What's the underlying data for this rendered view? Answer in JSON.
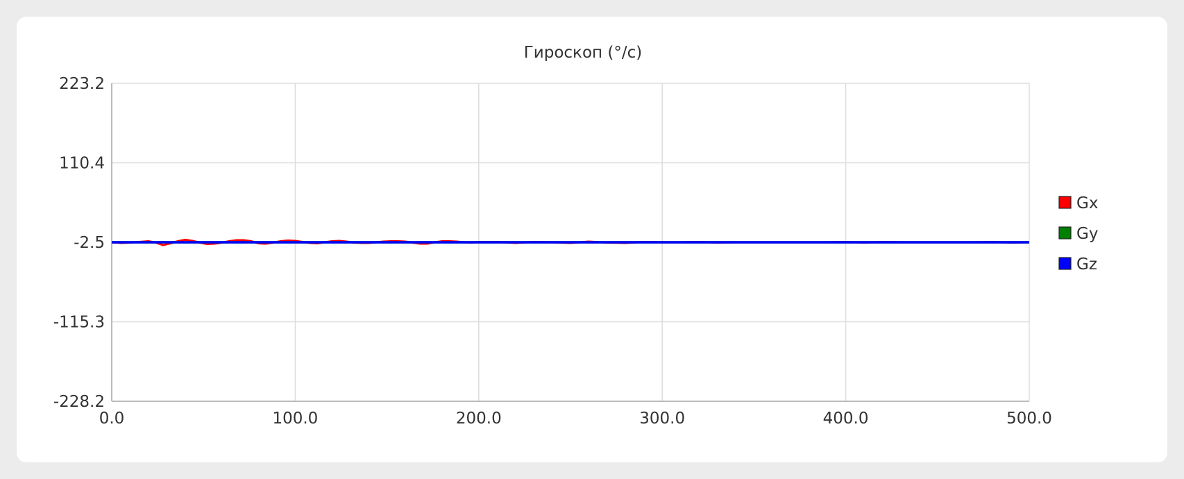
{
  "chart_data": {
    "type": "line",
    "title": "Гироскоп (°/с)",
    "xlabel": "",
    "ylabel": "",
    "xlim": [
      0,
      500
    ],
    "ylim": [
      -228.2,
      223.2
    ],
    "x_ticks": [
      "0.0",
      "100.0",
      "200.0",
      "300.0",
      "400.0",
      "500.0"
    ],
    "y_ticks": [
      "223.2",
      "110.4",
      "-2.5",
      "-115.3",
      "-228.2"
    ],
    "x_tick_values": [
      0,
      100,
      200,
      300,
      400,
      500
    ],
    "y_tick_values": [
      223.2,
      110.4,
      -2.5,
      -115.3,
      -228.2
    ],
    "grid": true,
    "legend_position": "right",
    "series": [
      {
        "name": "Gx",
        "color": "#ff0000",
        "x": [
          0,
          5,
          10,
          15,
          20,
          24,
          28,
          32,
          36,
          40,
          44,
          48,
          52,
          56,
          60,
          64,
          68,
          72,
          76,
          80,
          84,
          88,
          92,
          96,
          100,
          104,
          108,
          112,
          116,
          120,
          124,
          128,
          132,
          136,
          140,
          144,
          148,
          152,
          156,
          160,
          164,
          168,
          172,
          176,
          180,
          184,
          188,
          192,
          196,
          200,
          210,
          220,
          230,
          240,
          250,
          260,
          270,
          280,
          290,
          300,
          310,
          320,
          330,
          340,
          350,
          360,
          370,
          380,
          390,
          400,
          410,
          420,
          430,
          440,
          450,
          460,
          470,
          480,
          490,
          500
        ],
        "values": [
          -2.5,
          -3.5,
          -3,
          -2,
          -1,
          -3,
          -6.5,
          -4,
          -1,
          1,
          -0.5,
          -3,
          -5,
          -4.5,
          -3,
          -1,
          0.5,
          0.5,
          -1,
          -4,
          -4.5,
          -3,
          -1,
          0,
          -0.5,
          -2,
          -3.5,
          -4,
          -2.5,
          -1,
          -0.5,
          -1.5,
          -3,
          -3.5,
          -3.5,
          -2.5,
          -1.5,
          -1,
          -1,
          -1.5,
          -3,
          -4.5,
          -4.5,
          -2.5,
          -1,
          -1,
          -1.5,
          -2.5,
          -3,
          -2,
          -2,
          -3.5,
          -2,
          -2.5,
          -3.5,
          -1.5,
          -3,
          -3.5,
          -2,
          -2.5,
          -2.5,
          -2,
          -3,
          -2.5,
          -2.5,
          -2.5,
          -2.5,
          -2.5,
          -2.5,
          -2,
          -3,
          -2,
          -2.5,
          -2.5,
          -2.5,
          -2.5,
          -2.5,
          -2,
          -3,
          -2.5
        ]
      },
      {
        "name": "Gy",
        "color": "#008000",
        "x": [
          0,
          50,
          100,
          150,
          200,
          250,
          300,
          350,
          400,
          450,
          500
        ],
        "values": [
          -2.5,
          -2.5,
          -2.5,
          -2.5,
          -2.5,
          -2.5,
          -2.5,
          -2.5,
          -2.5,
          -2.5,
          -2.5
        ]
      },
      {
        "name": "Gz",
        "color": "#0000ff",
        "x": [
          0,
          50,
          100,
          150,
          200,
          250,
          300,
          350,
          400,
          450,
          500
        ],
        "values": [
          -2.5,
          -2.5,
          -2.5,
          -2.5,
          -2.5,
          -2.5,
          -2.5,
          -2.5,
          -2.5,
          -2.5,
          -2.5
        ]
      }
    ]
  }
}
